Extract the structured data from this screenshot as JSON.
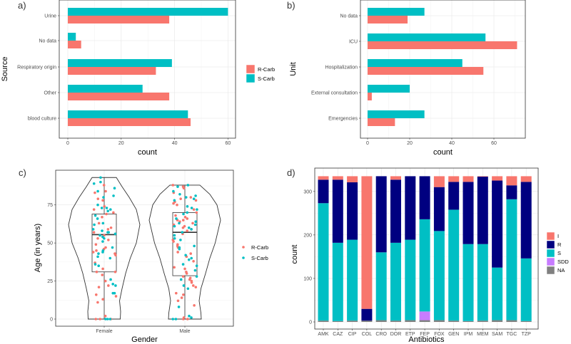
{
  "colors": {
    "R-Carb": "#F8766D",
    "S-Carb": "#00BFC4",
    "I": "#F8766D",
    "R": "#000080",
    "S": "#00BFC4",
    "SDD": "#C77CFF",
    "NA": "#808080"
  },
  "chart_data": [
    {
      "panel": "a)",
      "type": "bar",
      "orientation": "horizontal",
      "categories": [
        "Urine",
        "No data",
        "Respiratory origin",
        "Other",
        "blood culture"
      ],
      "series": [
        {
          "name": "S-Carb",
          "values": [
            60,
            3,
            39,
            28,
            45
          ]
        },
        {
          "name": "R-Carb",
          "values": [
            38,
            5,
            33,
            38,
            46
          ]
        }
      ],
      "xlabel": "count",
      "ylabel": "Source",
      "xticks": [
        "0",
        "20",
        "40",
        "60"
      ],
      "xlim": [
        0,
        62
      ],
      "legend": [
        "R-Carb",
        "S-Carb"
      ],
      "legend_position": "right",
      "grid": true
    },
    {
      "panel": "b)",
      "type": "bar",
      "orientation": "horizontal",
      "categories": [
        "No data",
        "ICU",
        "Hospitalization",
        "External consultation",
        "Emergencies"
      ],
      "series": [
        {
          "name": "S-Carb",
          "values": [
            27,
            56,
            45,
            20,
            27
          ]
        },
        {
          "name": "R-Carb",
          "values": [
            19,
            71,
            55,
            2,
            13
          ]
        }
      ],
      "xlabel": "count",
      "ylabel": "Unit",
      "xticks": [
        "0",
        "20",
        "40",
        "60"
      ],
      "xlim": [
        0,
        74
      ],
      "grid": true
    },
    {
      "panel": "c)",
      "type": "violin+box+scatter",
      "categories": [
        "Female",
        "Male"
      ],
      "xlabel": "Gender",
      "ylabel": "Age (in years)",
      "yticks": [
        "0",
        "25",
        "50",
        "75"
      ],
      "ylim": [
        -3,
        97
      ],
      "legend": [
        "R-Carb",
        "S-Carb"
      ],
      "legend_position": "right",
      "box": [
        {
          "min": 0,
          "q1": 31,
          "median": 55.5,
          "q3": 69,
          "max": 93
        },
        {
          "min": 0,
          "q1": 28.5,
          "median": 57,
          "q3": 70,
          "max": 88
        }
      ],
      "density": [
        [
          [
            0,
            0.45
          ],
          [
            5,
            0.46
          ],
          [
            12,
            0.43
          ],
          [
            20,
            0.5
          ],
          [
            30,
            0.6
          ],
          [
            40,
            0.73
          ],
          [
            50,
            0.9
          ],
          [
            62,
            1.0
          ],
          [
            72,
            0.9
          ],
          [
            80,
            0.7
          ],
          [
            87,
            0.5
          ],
          [
            93,
            0.34
          ]
        ],
        [
          [
            0,
            0.46
          ],
          [
            4,
            0.45
          ],
          [
            12,
            0.4
          ],
          [
            20,
            0.45
          ],
          [
            30,
            0.58
          ],
          [
            40,
            0.7
          ],
          [
            50,
            0.85
          ],
          [
            65,
            1.0
          ],
          [
            75,
            0.9
          ],
          [
            82,
            0.7
          ],
          [
            88,
            0.42
          ]
        ]
      ],
      "points": [
        {
          "R-Carb": [
            88,
            84,
            83,
            79,
            78,
            74,
            72,
            70,
            69,
            67,
            63,
            60,
            59,
            57,
            55,
            53,
            52,
            49,
            47,
            46,
            45,
            44,
            43,
            42,
            37,
            33,
            31,
            31,
            29,
            25,
            22,
            21,
            16,
            15,
            13,
            11,
            2,
            0,
            0,
            0
          ],
          "S-Carb": [
            93,
            90,
            89,
            86,
            84,
            81,
            80,
            75,
            73,
            73,
            72,
            71,
            68,
            66,
            63,
            62,
            59,
            58,
            57,
            57,
            56,
            55,
            54,
            53,
            51,
            47,
            45,
            44,
            43,
            41,
            40,
            36,
            35,
            26,
            23,
            22,
            17,
            17,
            0,
            0,
            0
          ]
        },
        {
          "R-Carb": [
            88,
            87,
            86,
            83,
            80,
            79,
            78,
            77,
            76,
            75,
            72,
            70,
            68,
            67,
            66,
            65,
            65,
            64,
            63,
            62,
            61,
            60,
            59,
            58,
            56,
            52,
            51,
            49,
            48,
            47,
            44,
            43,
            41,
            38,
            34,
            33,
            31,
            30,
            28,
            27,
            26,
            25,
            24,
            22,
            21,
            17,
            16,
            14,
            12,
            9,
            1,
            0,
            0
          ],
          "S-Carb": [
            88,
            87,
            84,
            82,
            81,
            80,
            79,
            78,
            74,
            73,
            72,
            70,
            69,
            66,
            64,
            63,
            62,
            61,
            60,
            59,
            57,
            55,
            53,
            52,
            48,
            47,
            46,
            42,
            40,
            39,
            36,
            35,
            32,
            28,
            26,
            22,
            20,
            8,
            2,
            1,
            0,
            0
          ]
        }
      ]
    },
    {
      "panel": "d)",
      "type": "bar",
      "stacked": true,
      "categories": [
        "AMK",
        "CAZ",
        "CIP",
        "COL",
        "CRO",
        "DOR",
        "ETP",
        "FEP",
        "FOX",
        "GEN",
        "IPM",
        "MEM",
        "SAM",
        "TGC",
        "TZP"
      ],
      "series": [
        {
          "name": "NA",
          "values": [
            3,
            2,
            3,
            3,
            4,
            3,
            4,
            4,
            4,
            3,
            2,
            3,
            4,
            4,
            2
          ]
        },
        {
          "name": "SDD",
          "values": [
            0,
            0,
            0,
            0,
            0,
            0,
            0,
            20,
            0,
            0,
            0,
            0,
            0,
            0,
            0
          ]
        },
        {
          "name": "S",
          "values": [
            270,
            180,
            186,
            0,
            156,
            179,
            185,
            212,
            205,
            255,
            177,
            176,
            121,
            278,
            144
          ]
        },
        {
          "name": "R",
          "values": [
            54,
            145,
            132,
            27,
            175,
            145,
            146,
            99,
            101,
            64,
            143,
            155,
            200,
            32,
            176
          ]
        },
        {
          "name": "I",
          "values": [
            8,
            8,
            14,
            305,
            0,
            8,
            0,
            0,
            25,
            13,
            13,
            1,
            10,
            21,
            13
          ]
        }
      ],
      "xlabel": "Antibiotics",
      "ylabel": "count",
      "yticks": [
        "0",
        "100",
        "200",
        "300"
      ],
      "ylim": [
        -17,
        352
      ],
      "legend": [
        "I",
        "R",
        "S",
        "SDD",
        "NA"
      ],
      "legend_position": "right",
      "grid": true
    }
  ]
}
